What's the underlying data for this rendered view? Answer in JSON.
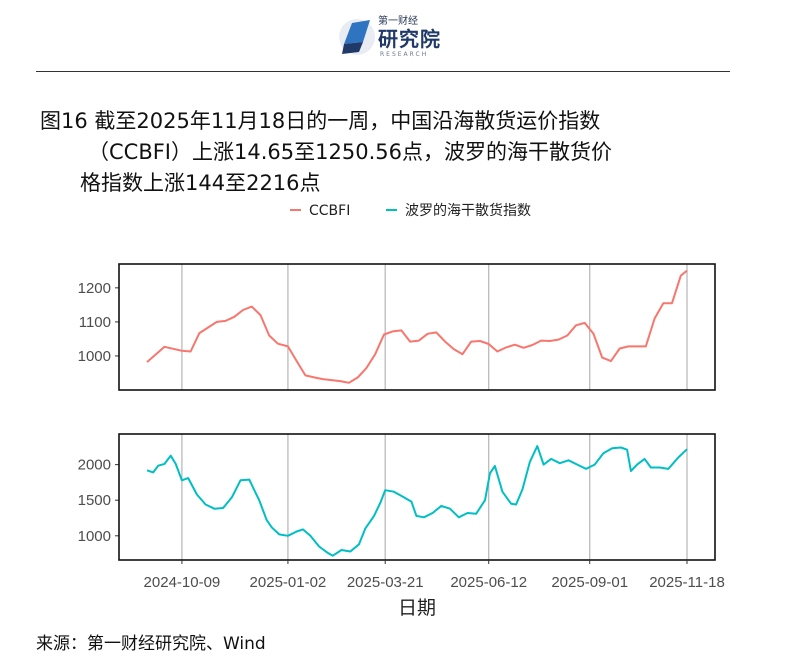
{
  "header": {
    "logo_small": "第一财经",
    "logo_main": "研究院",
    "logo_sub": "RESEARCH"
  },
  "title": {
    "line1": "图16  截至2025年11月18日的一周，中国沿海散货运价指数",
    "line2": "（CCBFI）上涨14.65至1250.56点，波罗的海干散货价",
    "line3": "格指数上涨144至2216点"
  },
  "source": "来源：第一财经研究院、Wind",
  "chart_data": {
    "type": "line",
    "xlabel": "日期",
    "x_ticks": [
      "2024-10-09",
      "2025-01-02",
      "2025-03-21",
      "2025-06-12",
      "2025-09-01",
      "2025-11-18"
    ],
    "x_range": [
      "2024-09-11",
      "2025-11-18"
    ],
    "grid": "vertical lines at x ticks",
    "legend_position": "top",
    "colors": {
      "CCBFI": "#F8766D",
      "BDI": "#00BFC4"
    },
    "panels": [
      {
        "series_name": "CCBFI",
        "legend_label": "CCBFI",
        "color": "#F8766D",
        "ylim": [
          900,
          1270
        ],
        "y_ticks": [
          1000,
          1100,
          1200
        ],
        "points": [
          [
            "2024-09-11",
            982
          ],
          [
            "2024-09-25",
            1027
          ],
          [
            "2024-10-09",
            1015
          ],
          [
            "2024-10-16",
            1013
          ],
          [
            "2024-10-23",
            1067
          ],
          [
            "2024-11-06",
            1100
          ],
          [
            "2024-11-13",
            1103
          ],
          [
            "2024-11-20",
            1115
          ],
          [
            "2024-11-27",
            1135
          ],
          [
            "2024-12-04",
            1145
          ],
          [
            "2024-12-11",
            1120
          ],
          [
            "2024-12-18",
            1060
          ],
          [
            "2024-12-25",
            1036
          ],
          [
            "2025-01-02",
            1028
          ],
          [
            "2025-01-09",
            985
          ],
          [
            "2025-01-16",
            943
          ],
          [
            "2025-01-23",
            937
          ],
          [
            "2025-01-30",
            932
          ],
          [
            "2025-02-13",
            926
          ],
          [
            "2025-02-20",
            921
          ],
          [
            "2025-02-27",
            937
          ],
          [
            "2025-03-06",
            965
          ],
          [
            "2025-03-13",
            1005
          ],
          [
            "2025-03-20",
            1063
          ],
          [
            "2025-03-27",
            1072
          ],
          [
            "2025-04-03",
            1075
          ],
          [
            "2025-04-10",
            1042
          ],
          [
            "2025-04-17",
            1045
          ],
          [
            "2025-04-24",
            1065
          ],
          [
            "2025-05-01",
            1069
          ],
          [
            "2025-05-08",
            1042
          ],
          [
            "2025-05-15",
            1020
          ],
          [
            "2025-05-22",
            1005
          ],
          [
            "2025-05-29",
            1042
          ],
          [
            "2025-06-05",
            1044
          ],
          [
            "2025-06-12",
            1035
          ],
          [
            "2025-06-19",
            1013
          ],
          [
            "2025-06-26",
            1025
          ],
          [
            "2025-07-03",
            1033
          ],
          [
            "2025-07-10",
            1024
          ],
          [
            "2025-07-17",
            1032
          ],
          [
            "2025-07-24",
            1045
          ],
          [
            "2025-07-31",
            1044
          ],
          [
            "2025-08-07",
            1048
          ],
          [
            "2025-08-14",
            1060
          ],
          [
            "2025-08-21",
            1090
          ],
          [
            "2025-08-28",
            1097
          ],
          [
            "2025-09-04",
            1065
          ],
          [
            "2025-09-11",
            995
          ],
          [
            "2025-09-18",
            985
          ],
          [
            "2025-09-25",
            1022
          ],
          [
            "2025-10-02",
            1028
          ],
          [
            "2025-10-09",
            1028
          ],
          [
            "2025-10-16",
            1028
          ],
          [
            "2025-10-23",
            1110
          ],
          [
            "2025-10-30",
            1155
          ],
          [
            "2025-11-06",
            1155
          ],
          [
            "2025-11-13",
            1236
          ],
          [
            "2025-11-18",
            1250.56
          ]
        ]
      },
      {
        "series_name": "BDI",
        "legend_label": "波罗的海干散货指数",
        "color": "#00BFC4",
        "ylim": [
          660,
          2430
        ],
        "y_ticks": [
          1000,
          1500,
          2000
        ],
        "points": [
          [
            "2024-09-11",
            1920
          ],
          [
            "2024-09-16",
            1890
          ],
          [
            "2024-09-20",
            1985
          ],
          [
            "2024-09-25",
            2010
          ],
          [
            "2024-09-30",
            2125
          ],
          [
            "2024-10-04",
            2010
          ],
          [
            "2024-10-09",
            1780
          ],
          [
            "2024-10-14",
            1810
          ],
          [
            "2024-10-21",
            1580
          ],
          [
            "2024-10-28",
            1440
          ],
          [
            "2024-11-04",
            1380
          ],
          [
            "2024-11-11",
            1390
          ],
          [
            "2024-11-18",
            1540
          ],
          [
            "2024-11-25",
            1780
          ],
          [
            "2024-12-02",
            1790
          ],
          [
            "2024-12-06",
            1640
          ],
          [
            "2024-12-10",
            1500
          ],
          [
            "2024-12-16",
            1220
          ],
          [
            "2024-12-20",
            1120
          ],
          [
            "2024-12-26",
            1020
          ],
          [
            "2025-01-02",
            1000
          ],
          [
            "2025-01-09",
            1060
          ],
          [
            "2025-01-14",
            1090
          ],
          [
            "2025-01-20",
            1000
          ],
          [
            "2025-01-27",
            850
          ],
          [
            "2025-02-03",
            760
          ],
          [
            "2025-02-07",
            720
          ],
          [
            "2025-02-14",
            800
          ],
          [
            "2025-02-21",
            780
          ],
          [
            "2025-02-28",
            880
          ],
          [
            "2025-03-05",
            1100
          ],
          [
            "2025-03-12",
            1280
          ],
          [
            "2025-03-17",
            1460
          ],
          [
            "2025-03-21",
            1640
          ],
          [
            "2025-03-28",
            1620
          ],
          [
            "2025-04-04",
            1550
          ],
          [
            "2025-04-11",
            1480
          ],
          [
            "2025-04-15",
            1280
          ],
          [
            "2025-04-21",
            1260
          ],
          [
            "2025-04-28",
            1320
          ],
          [
            "2025-05-05",
            1420
          ],
          [
            "2025-05-12",
            1380
          ],
          [
            "2025-05-19",
            1260
          ],
          [
            "2025-05-26",
            1320
          ],
          [
            "2025-06-02",
            1310
          ],
          [
            "2025-06-09",
            1500
          ],
          [
            "2025-06-13",
            1880
          ],
          [
            "2025-06-17",
            1980
          ],
          [
            "2025-06-23",
            1620
          ],
          [
            "2025-06-30",
            1450
          ],
          [
            "2025-07-04",
            1440
          ],
          [
            "2025-07-09",
            1650
          ],
          [
            "2025-07-15",
            2040
          ],
          [
            "2025-07-21",
            2260
          ],
          [
            "2025-07-26",
            2000
          ],
          [
            "2025-08-01",
            2080
          ],
          [
            "2025-08-08",
            2020
          ],
          [
            "2025-08-15",
            2060
          ],
          [
            "2025-08-22",
            2000
          ],
          [
            "2025-08-29",
            1940
          ],
          [
            "2025-09-05",
            2000
          ],
          [
            "2025-09-12",
            2160
          ],
          [
            "2025-09-19",
            2230
          ],
          [
            "2025-09-26",
            2240
          ],
          [
            "2025-10-01",
            2210
          ],
          [
            "2025-10-04",
            1910
          ],
          [
            "2025-10-09",
            2000
          ],
          [
            "2025-10-15",
            2080
          ],
          [
            "2025-10-20",
            1960
          ],
          [
            "2025-10-27",
            1960
          ],
          [
            "2025-11-03",
            1940
          ],
          [
            "2025-11-07",
            2020
          ],
          [
            "2025-11-11",
            2100
          ],
          [
            "2025-11-18",
            2216
          ]
        ]
      }
    ]
  }
}
